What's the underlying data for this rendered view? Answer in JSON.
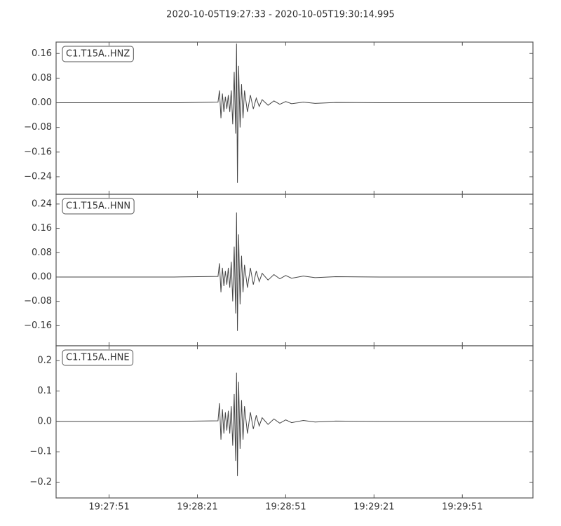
{
  "title": "2020-10-05T19:27:33  -  2020-10-05T19:30:14.995",
  "chart_data": [
    {
      "type": "line",
      "label": "C1.T15A..HNZ",
      "xlim": [
        0,
        161.995
      ],
      "xticks": [
        18,
        48,
        78,
        108,
        138
      ],
      "ylim": [
        -0.297,
        0.197
      ],
      "yticks": [
        0.16,
        0.08,
        {
          "value": 0,
          "label": "0.00"
        },
        {
          "value": -0.08,
          "label": "−0.08"
        },
        {
          "value": -0.16,
          "label": "−0.16"
        },
        {
          "value": -0.24,
          "label": "−0.24"
        }
      ],
      "series": [
        {
          "color": "#444444",
          "x": [
            0,
            20,
            40,
            55,
            55.5,
            56,
            56.5,
            57,
            57.5,
            58,
            58.5,
            59,
            59.5,
            60,
            60.5,
            61,
            61.3,
            61.6,
            62,
            62.5,
            63,
            63.5,
            64,
            65,
            66,
            67,
            68,
            69,
            70,
            72,
            74,
            76,
            78,
            80,
            84,
            88,
            95,
            110,
            130,
            161.995
          ],
          "values": [
            0,
            0,
            0,
            0.002,
            0.04,
            -0.05,
            0.03,
            -0.03,
            0.02,
            -0.02,
            0.025,
            -0.03,
            0.04,
            -0.07,
            0.1,
            -0.1,
            0.192,
            -0.26,
            0.12,
            -0.08,
            0.06,
            -0.05,
            0.04,
            -0.03,
            0.025,
            -0.02,
            0.015,
            -0.012,
            0.01,
            -0.008,
            0.006,
            -0.005,
            0.004,
            -0.003,
            0.002,
            -0.002,
            0.001,
            0,
            0,
            0
          ]
        }
      ]
    },
    {
      "type": "line",
      "label": "C1.T15A..HNN",
      "xlim": [
        0,
        161.995
      ],
      "xticks": [
        18,
        48,
        78,
        108,
        138
      ],
      "ylim": [
        -0.226,
        0.272
      ],
      "yticks": [
        0.24,
        0.16,
        0.08,
        {
          "value": 0,
          "label": "0.00"
        },
        {
          "value": -0.08,
          "label": "−0.08"
        },
        {
          "value": -0.16,
          "label": "−0.16"
        }
      ],
      "series": [
        {
          "color": "#444444",
          "x": [
            0,
            20,
            40,
            55,
            55.5,
            56,
            56.5,
            57,
            57.5,
            58,
            58.5,
            59,
            59.5,
            60,
            60.5,
            61,
            61.3,
            61.6,
            62,
            62.5,
            63,
            63.5,
            64,
            65,
            66,
            67,
            68,
            69,
            70,
            72,
            74,
            76,
            78,
            80,
            84,
            88,
            95,
            110,
            130,
            161.995
          ],
          "values": [
            0,
            0,
            0,
            0.002,
            0.045,
            -0.05,
            0.03,
            -0.03,
            0.02,
            -0.025,
            0.03,
            -0.035,
            0.05,
            -0.08,
            0.1,
            -0.12,
            0.212,
            -0.177,
            0.14,
            -0.09,
            0.07,
            -0.05,
            0.04,
            -0.035,
            0.03,
            -0.025,
            0.02,
            -0.015,
            0.012,
            -0.01,
            0.008,
            -0.006,
            0.005,
            -0.004,
            0.003,
            -0.002,
            0.001,
            0,
            0,
            0
          ]
        }
      ]
    },
    {
      "type": "line",
      "label": "C1.T15A..HNE",
      "xlim": [
        0,
        161.995
      ],
      "xticks": [
        {
          "value": 18,
          "label": "19:27:51"
        },
        {
          "value": 48,
          "label": "19:28:21"
        },
        {
          "value": 78,
          "label": "19:28:51"
        },
        {
          "value": 108,
          "label": "19:29:21"
        },
        {
          "value": 138,
          "label": "19:29:51"
        }
      ],
      "ylim": [
        -0.252,
        0.249
      ],
      "yticks": [
        0.2,
        0.1,
        {
          "value": 0,
          "label": "0.0"
        },
        {
          "value": -0.1,
          "label": "−0.1"
        },
        {
          "value": -0.2,
          "label": "−0.2"
        }
      ],
      "series": [
        {
          "color": "#444444",
          "x": [
            0,
            20,
            40,
            55,
            55.5,
            56,
            56.5,
            57,
            57.5,
            58,
            58.5,
            59,
            59.5,
            60,
            60.5,
            61,
            61.3,
            61.6,
            62,
            62.5,
            63,
            63.5,
            64,
            65,
            66,
            67,
            68,
            69,
            70,
            72,
            74,
            76,
            78,
            80,
            84,
            88,
            95,
            110,
            130,
            161.995
          ],
          "values": [
            0,
            0,
            0,
            0.002,
            0.06,
            -0.06,
            0.04,
            -0.04,
            0.03,
            -0.03,
            0.035,
            -0.04,
            0.05,
            -0.08,
            0.09,
            -0.13,
            0.16,
            -0.18,
            0.13,
            -0.09,
            0.07,
            -0.06,
            0.05,
            -0.04,
            0.03,
            -0.025,
            0.02,
            -0.015,
            0.012,
            -0.01,
            0.008,
            -0.006,
            0.005,
            -0.004,
            0.003,
            -0.002,
            0.001,
            0,
            0,
            0
          ]
        }
      ]
    }
  ]
}
